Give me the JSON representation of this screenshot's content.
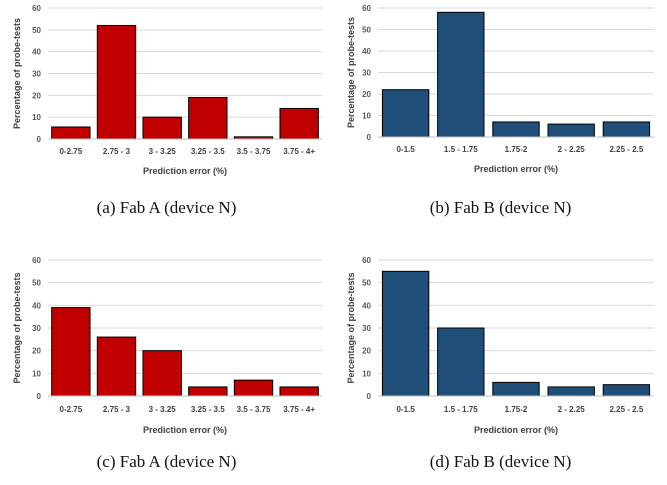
{
  "chart_data": [
    {
      "type": "bar",
      "caption": "(a) Fab A (device N)",
      "categories": [
        "0-2.75",
        "2.75 - 3",
        "3 - 3.25",
        "3.25 - 3.5",
        "3.5 - 3.75",
        "3.75 - 4+"
      ],
      "values": [
        5.5,
        52,
        10,
        19,
        1,
        14
      ],
      "xlabel": "Prediction error (%)",
      "ylabel": "Percentage of probe-tests",
      "ylim": [
        0,
        60
      ],
      "yticks": [
        "0",
        "10",
        "20",
        "30",
        "40",
        "50",
        "60"
      ],
      "color": "#c00000",
      "grid": true
    },
    {
      "type": "bar",
      "caption": "(b) Fab B (device N)",
      "categories": [
        "0-1.5",
        "1.5 - 1.75",
        "1.75-2",
        "2 - 2.25",
        "2.25 - 2.5"
      ],
      "values": [
        22,
        58,
        7,
        6,
        7
      ],
      "xlabel": "Prediction error (%)",
      "ylabel": "Percentage of probe-tests",
      "ylim": [
        0,
        60
      ],
      "yticks": [
        "0",
        "10",
        "20",
        "30",
        "40",
        "50",
        "60"
      ],
      "color": "#1f4e79",
      "grid": true
    },
    {
      "type": "bar",
      "caption": "(c) Fab A (device N)",
      "categories": [
        "0-2.75",
        "2.75 - 3",
        "3 - 3.25",
        "3.25 - 3.5",
        "3.5 - 3.75",
        "3.75 - 4+"
      ],
      "values": [
        39,
        26,
        20,
        4,
        7,
        4
      ],
      "xlabel": "Prediction error (%)",
      "ylabel": "Percentage of probe-tests",
      "ylim": [
        0,
        60
      ],
      "yticks": [
        "0",
        "10",
        "20",
        "30",
        "40",
        "50",
        "60"
      ],
      "color": "#c00000",
      "grid": true
    },
    {
      "type": "bar",
      "caption": "(d) Fab B (device N)",
      "categories": [
        "0-1.5",
        "1.5 - 1.75",
        "1.75-2",
        "2 - 2.25",
        "2.25 - 2.5"
      ],
      "values": [
        55,
        30,
        6,
        4,
        5
      ],
      "xlabel": "Prediction error (%)",
      "ylabel": "Percentage of probe-tests",
      "ylim": [
        0,
        60
      ],
      "yticks": [
        "0",
        "10",
        "20",
        "30",
        "40",
        "50",
        "60"
      ],
      "color": "#1f4e79",
      "grid": true
    }
  ]
}
